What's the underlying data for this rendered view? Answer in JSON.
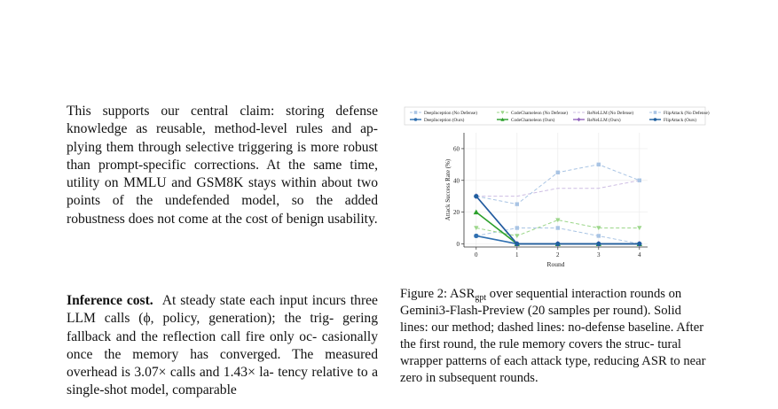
{
  "paragraphs": [
    {
      "lines": [
        "This supports our central claim: storing defense",
        "knowledge as reusable, method-level rules and ap-",
        "plying them through selective triggering is more",
        "robust than prompt-specific corrections. At the",
        "same time, utility on MMLU and GSM8K stays",
        "within about two points of the undefended model,",
        "so the added robustness does not come at the cost",
        "of benign usability."
      ]
    },
    {
      "run_in": "Inference cost.",
      "lines": [
        "At steady state each input incurs",
        "three LLM calls (ϕ, policy, generation); the trig-",
        "gering fallback and the reflection call fire only oc-",
        "casionally once the memory has converged. The",
        "measured overhead is 3.07× calls and 1.43× la-",
        "tency relative to a single-shot model, comparable"
      ]
    }
  ],
  "caption": {
    "label": "Figure 2:",
    "asr": "ASR",
    "asr_sub": "gpt",
    "lines": [
      "over sequential interaction rounds on",
      "Gemini3-Flash-Preview (20 samples per round). Solid",
      "lines: our method; dashed lines: no-defense baseline.",
      "After the first round, the rule memory covers the struc-",
      "tural wrapper patterns of each attack type, reducing ASR",
      "to near zero in subsequent rounds."
    ]
  },
  "chart_data": {
    "type": "line",
    "xlabel": "Round",
    "ylabel": "Attack Success Rate (%)",
    "x": [
      0,
      1,
      2,
      3,
      4
    ],
    "xlim": [
      -0.3,
      4.2
    ],
    "ylim": [
      -2,
      70
    ],
    "yticks": [
      0,
      20,
      40,
      60
    ],
    "grid": true,
    "legend": "top",
    "series": [
      {
        "name": "DeepInception (No Defense)",
        "values": [
          5,
          10,
          10,
          5,
          0
        ],
        "color": "#a9c4e4",
        "dashed": true,
        "marker": "square"
      },
      {
        "name": "CodeChameleon (No Defense)",
        "values": [
          10,
          5,
          15,
          10,
          10
        ],
        "color": "#9cd68a",
        "dashed": true,
        "marker": "triangle-down"
      },
      {
        "name": "ReNeLLM (No Defense)",
        "values": [
          30,
          30,
          35,
          35,
          40
        ],
        "color": "#cdbde3",
        "dashed": true,
        "marker": "none"
      },
      {
        "name": "FlipAttack (No Defense)",
        "values": [
          30,
          25,
          45,
          50,
          40
        ],
        "color": "#a9c4e4",
        "dashed": true,
        "marker": "square"
      },
      {
        "name": "DeepInception (Ours)",
        "values": [
          5,
          0,
          0,
          0,
          0
        ],
        "color": "#2f6fb0",
        "dashed": false,
        "marker": "circle"
      },
      {
        "name": "CodeChameleon (Ours)",
        "values": [
          20,
          0,
          0,
          0,
          0
        ],
        "color": "#2ca02c",
        "dashed": false,
        "marker": "triangle"
      },
      {
        "name": "ReNeLLM (Ours)",
        "values": [
          30,
          0,
          0,
          0,
          0
        ],
        "color": "#9467bd",
        "dashed": false,
        "marker": "diamond"
      },
      {
        "name": "FlipAttack (Ours)",
        "values": [
          30,
          0,
          0,
          0,
          0
        ],
        "color": "#1f5f9f",
        "dashed": false,
        "marker": "circle"
      }
    ]
  }
}
